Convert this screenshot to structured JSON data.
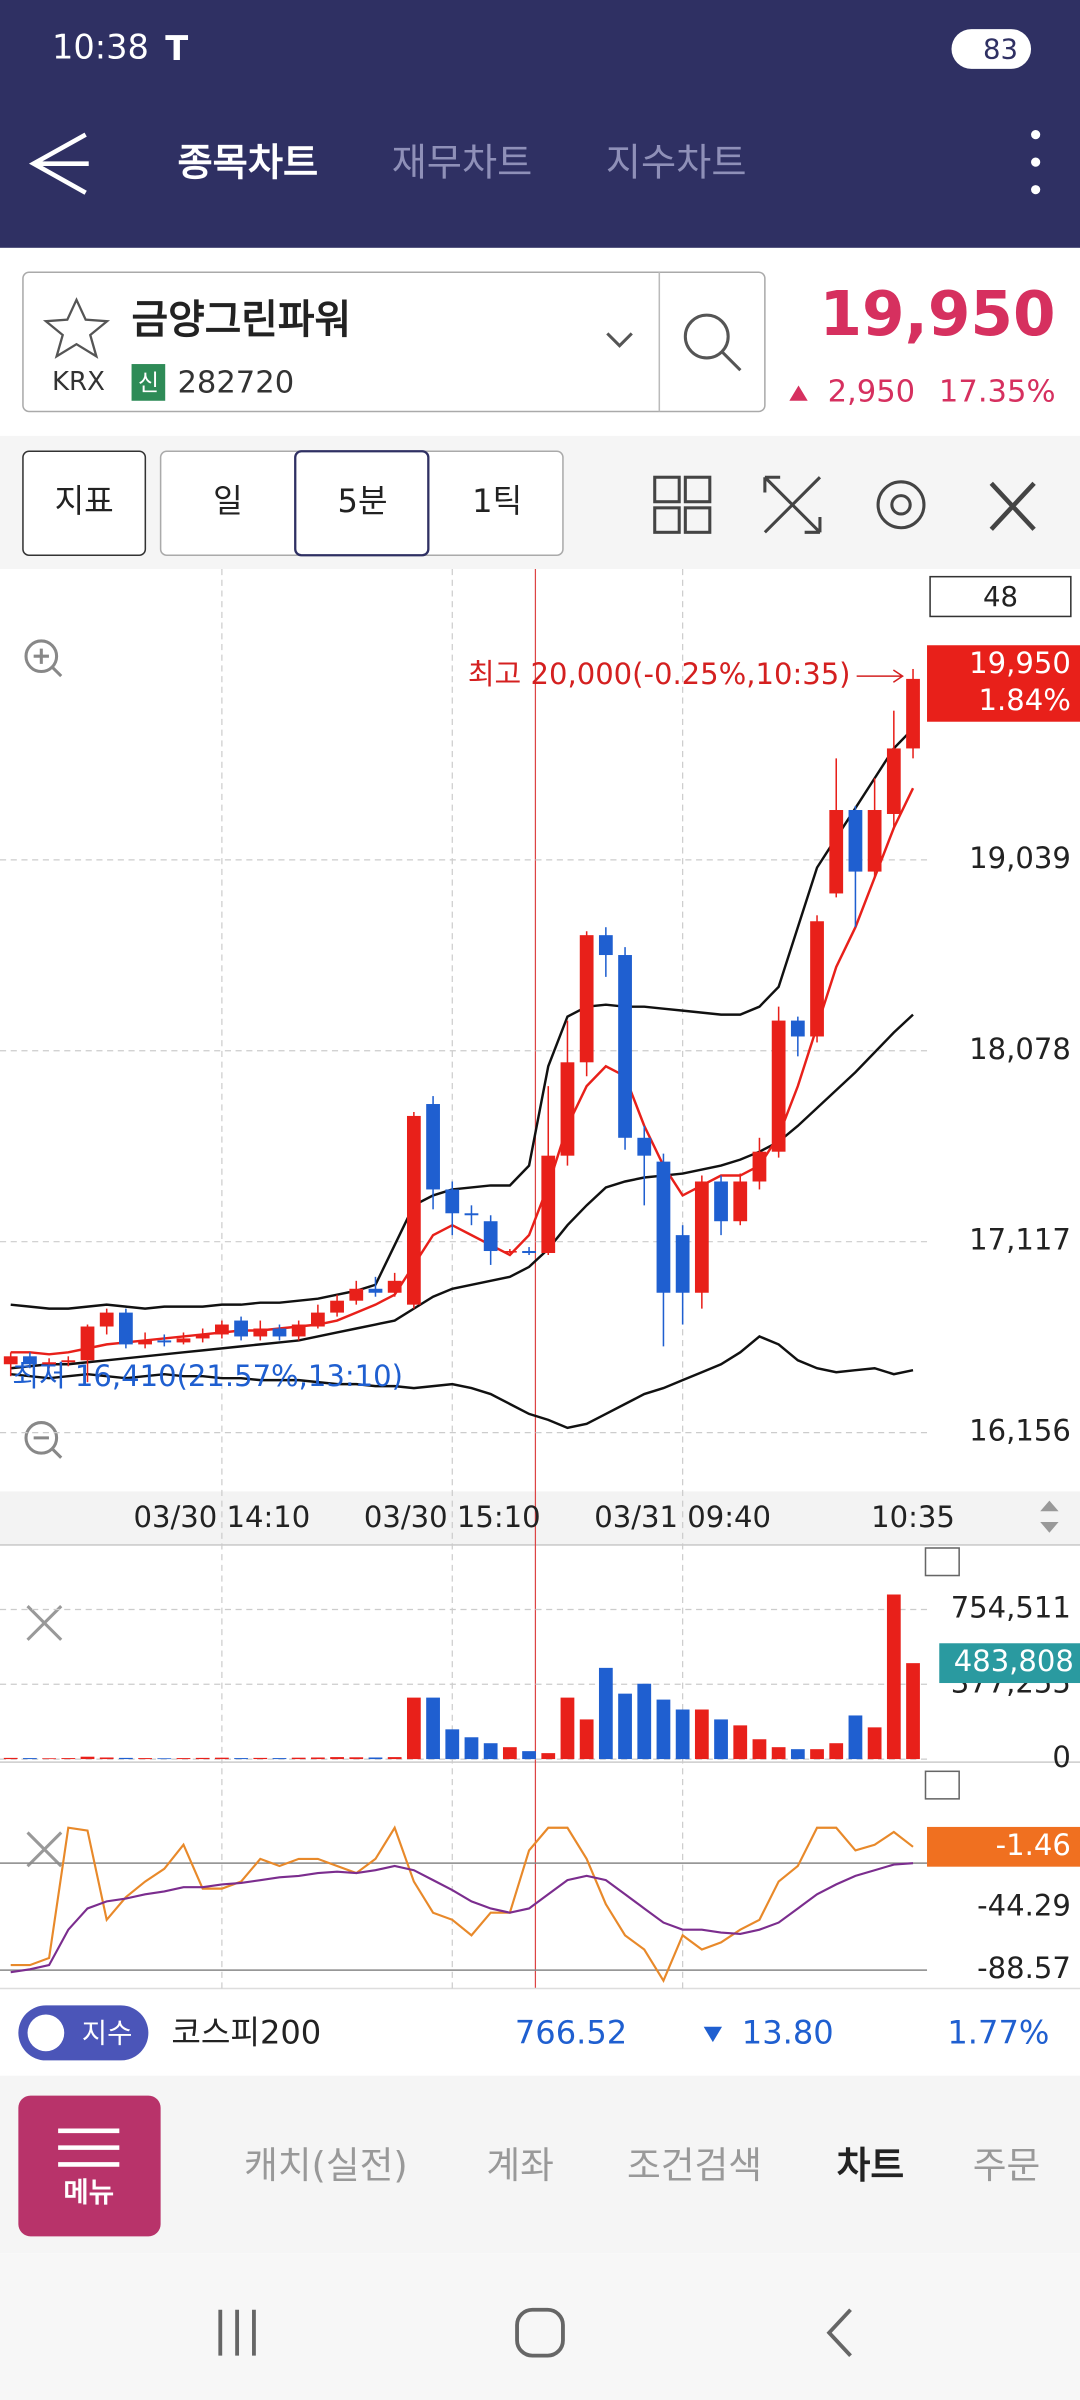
{
  "status_bar": {
    "time": "10:38",
    "battery": "83"
  },
  "tabs": [
    "종목차트",
    "재무차트",
    "지수차트"
  ],
  "stock": {
    "name": "금양그린파워",
    "market": "KRX",
    "badge": "신",
    "code": "282720",
    "price": "19,950",
    "change": "2,950",
    "change_rate": "17.35%"
  },
  "toolbar": {
    "indicator": "지표",
    "periods": [
      "일",
      "5분",
      "1틱"
    ]
  },
  "chart_data": [
    {
      "type": "candlestick",
      "count": 48,
      "categories": [
        null,
        null,
        null,
        null,
        null,
        null,
        null,
        null,
        null,
        null,
        null,
        "03/30 14:10",
        null,
        null,
        null,
        null,
        null,
        null,
        null,
        null,
        null,
        null,
        null,
        "03/30 15:10",
        null,
        null,
        null,
        null,
        null,
        null,
        null,
        null,
        null,
        null,
        null,
        "03/31 09:40",
        null,
        null,
        null,
        null,
        null,
        null,
        null,
        null,
        null,
        null,
        null,
        "10:35"
      ],
      "candles": [
        {
          "o": 16500,
          "h": 16560,
          "l": 16440,
          "c": 16540
        },
        {
          "o": 16540,
          "h": 16560,
          "l": 16480,
          "c": 16500
        },
        {
          "o": 16500,
          "h": 16530,
          "l": 16480,
          "c": 16510
        },
        {
          "o": 16510,
          "h": 16540,
          "l": 16490,
          "c": 16520
        },
        {
          "o": 16520,
          "h": 16700,
          "l": 16410,
          "c": 16690
        },
        {
          "o": 16690,
          "h": 16780,
          "l": 16650,
          "c": 16760
        },
        {
          "o": 16760,
          "h": 16780,
          "l": 16580,
          "c": 16600
        },
        {
          "o": 16600,
          "h": 16660,
          "l": 16580,
          "c": 16620
        },
        {
          "o": 16620,
          "h": 16650,
          "l": 16590,
          "c": 16610
        },
        {
          "o": 16610,
          "h": 16660,
          "l": 16600,
          "c": 16630
        },
        {
          "o": 16630,
          "h": 16680,
          "l": 16610,
          "c": 16650
        },
        {
          "o": 16650,
          "h": 16720,
          "l": 16630,
          "c": 16700
        },
        {
          "o": 16720,
          "h": 16740,
          "l": 16620,
          "c": 16640
        },
        {
          "o": 16640,
          "h": 16720,
          "l": 16620,
          "c": 16680
        },
        {
          "o": 16680,
          "h": 16700,
          "l": 16620,
          "c": 16640
        },
        {
          "o": 16640,
          "h": 16720,
          "l": 16620,
          "c": 16700
        },
        {
          "o": 16690,
          "h": 16800,
          "l": 16680,
          "c": 16760
        },
        {
          "o": 16760,
          "h": 16850,
          "l": 16740,
          "c": 16820
        },
        {
          "o": 16820,
          "h": 16920,
          "l": 16800,
          "c": 16880
        },
        {
          "o": 16880,
          "h": 16940,
          "l": 16840,
          "c": 16860
        },
        {
          "o": 16860,
          "h": 16960,
          "l": 16840,
          "c": 16920
        },
        {
          "o": 16800,
          "h": 17770,
          "l": 16780,
          "c": 17750
        },
        {
          "o": 17810,
          "h": 17850,
          "l": 17280,
          "c": 17380
        },
        {
          "o": 17380,
          "h": 17420,
          "l": 17150,
          "c": 17260
        },
        {
          "o": 17260,
          "h": 17300,
          "l": 17200,
          "c": 17250
        },
        {
          "o": 17220,
          "h": 17250,
          "l": 17000,
          "c": 17070
        },
        {
          "o": 17070,
          "h": 17080,
          "l": 17060,
          "c": 17070
        },
        {
          "o": 17070,
          "h": 17090,
          "l": 17050,
          "c": 17060
        },
        {
          "o": 17060,
          "h": 17900,
          "l": 17050,
          "c": 17550
        },
        {
          "o": 17550,
          "h": 18230,
          "l": 17500,
          "c": 18020
        },
        {
          "o": 18020,
          "h": 18680,
          "l": 17950,
          "c": 18660
        },
        {
          "o": 18660,
          "h": 18700,
          "l": 18450,
          "c": 18560
        },
        {
          "o": 18560,
          "h": 18600,
          "l": 17580,
          "c": 17640
        },
        {
          "o": 17640,
          "h": 17700,
          "l": 17300,
          "c": 17550
        },
        {
          "o": 17520,
          "h": 17560,
          "l": 16590,
          "c": 16860
        },
        {
          "o": 17150,
          "h": 17200,
          "l": 16700,
          "c": 16860
        },
        {
          "o": 16860,
          "h": 17450,
          "l": 16780,
          "c": 17420
        },
        {
          "o": 17420,
          "h": 17450,
          "l": 17150,
          "c": 17220
        },
        {
          "o": 17220,
          "h": 17460,
          "l": 17200,
          "c": 17420
        },
        {
          "o": 17420,
          "h": 17640,
          "l": 17380,
          "c": 17570
        },
        {
          "o": 17570,
          "h": 18300,
          "l": 17540,
          "c": 18230
        },
        {
          "o": 18230,
          "h": 18250,
          "l": 18050,
          "c": 18150
        },
        {
          "o": 18150,
          "h": 18760,
          "l": 18120,
          "c": 18730
        },
        {
          "o": 18870,
          "h": 19550,
          "l": 18850,
          "c": 19290
        },
        {
          "o": 19290,
          "h": 19310,
          "l": 18700,
          "c": 18980
        },
        {
          "o": 18980,
          "h": 19450,
          "l": 18950,
          "c": 19290
        },
        {
          "o": 19270,
          "h": 19790,
          "l": 19200,
          "c": 19600
        },
        {
          "o": 19600,
          "h": 20000,
          "l": 19550,
          "c": 19950
        }
      ],
      "up_color": "#e8201a",
      "down_color": "#1f5fd0",
      "series": [
        {
          "color": "#111111",
          "values": [
            16800,
            16790,
            16780,
            16780,
            16790,
            16800,
            16790,
            16780,
            16790,
            16790,
            16790,
            16800,
            16800,
            16810,
            16810,
            16820,
            16830,
            16850,
            16870,
            16900,
            17100,
            17300,
            17350,
            17380,
            17390,
            17400,
            17400,
            17500,
            18000,
            18250,
            18300,
            18310,
            18300,
            18300,
            18290,
            18280,
            18270,
            18260,
            18260,
            18300,
            18400,
            18700,
            19000,
            19150,
            19300,
            19450,
            19600,
            19700
          ]
        },
        {
          "color": "#111111",
          "values": [
            16450,
            16440,
            16430,
            16440,
            16450,
            16440,
            16430,
            16440,
            16450,
            16440,
            16440,
            16430,
            16430,
            16420,
            16420,
            16420,
            16410,
            16400,
            16400,
            16390,
            16390,
            16380,
            16390,
            16400,
            16380,
            16350,
            16300,
            16250,
            16220,
            16180,
            16200,
            16250,
            16300,
            16350,
            16380,
            16420,
            16460,
            16500,
            16560,
            16640,
            16600,
            16520,
            16480,
            16460,
            16470,
            16480,
            16450,
            16470
          ]
        },
        {
          "color": "#111111",
          "values": [
            16480,
            16490,
            16500,
            16500,
            16510,
            16520,
            16530,
            16540,
            16550,
            16560,
            16570,
            16580,
            16590,
            16600,
            16610,
            16620,
            16640,
            16660,
            16680,
            16700,
            16720,
            16780,
            16840,
            16880,
            16900,
            16920,
            16940,
            16990,
            17080,
            17200,
            17300,
            17390,
            17420,
            17440,
            17450,
            17460,
            17480,
            17500,
            17530,
            17570,
            17620,
            17700,
            17790,
            17880,
            17970,
            18070,
            18170,
            18260
          ]
        },
        {
          "color": "#e8201a",
          "values": [
            16560,
            16560,
            16550,
            16560,
            16580,
            16600,
            16610,
            16620,
            16630,
            16640,
            16650,
            16660,
            16670,
            16670,
            16680,
            16690,
            16700,
            16720,
            16760,
            16800,
            16850,
            17000,
            17150,
            17200,
            17150,
            17100,
            17050,
            17150,
            17400,
            17700,
            17900,
            18000,
            17950,
            17700,
            17500,
            17350,
            17400,
            17450,
            17450,
            17500,
            17650,
            17900,
            18200,
            18500,
            18700,
            18950,
            19200,
            19400
          ]
        }
      ],
      "ylim": [
        15860,
        20480
      ],
      "yticks": [
        {
          "value": 16156,
          "label": "16,156"
        },
        {
          "value": 17117,
          "label": "17,117"
        },
        {
          "value": 18078,
          "label": "18,078"
        },
        {
          "value": 19039,
          "label": "19,039"
        }
      ],
      "last_label": "19,950",
      "last_change": "1.84%",
      "annotations": [
        "최고 20,000(-0.25%,10:35)",
        "최저 16,410(21.57%,13:10)"
      ],
      "grid": true
    },
    {
      "type": "bar",
      "values": [
        6000,
        5000,
        4000,
        5000,
        12000,
        8000,
        6000,
        5000,
        4000,
        5000,
        6000,
        7000,
        5000,
        6000,
        5000,
        7000,
        8000,
        10000,
        9000,
        8000,
        10000,
        310000,
        310000,
        150000,
        110000,
        80000,
        60000,
        40000,
        30000,
        310000,
        200000,
        460000,
        330000,
        380000,
        300000,
        250000,
        250000,
        200000,
        170000,
        100000,
        60000,
        50000,
        50000,
        80000,
        220000,
        160000,
        830000,
        483808
      ],
      "value_labels": [
        null,
        null,
        null,
        null,
        null,
        null,
        null,
        null,
        null,
        null,
        null,
        null,
        null,
        null,
        null,
        null,
        null,
        null,
        null,
        null,
        null,
        null,
        null,
        null,
        null,
        null,
        null,
        null,
        null,
        null,
        null,
        null,
        null,
        null,
        null,
        null,
        null,
        null,
        null,
        null,
        null,
        null,
        null,
        null,
        null,
        null,
        null,
        "483,808"
      ],
      "ylim": [
        0,
        1080000
      ],
      "yticks": [
        0,
        {
          "value": 377255,
          "label": "377,255"
        },
        {
          "value": 754511,
          "label": "754,511"
        }
      ]
    },
    {
      "type": "line",
      "series": [
        {
          "color": "#e8892a",
          "values": [
            -85,
            -85,
            -80,
            12,
            10,
            -53,
            -37,
            -26,
            -17,
            0,
            -31,
            -31,
            -26,
            -10,
            -15,
            -10,
            -10,
            -15,
            -20,
            -10,
            12,
            -26,
            -48,
            -53,
            -64,
            -48,
            -48,
            -4,
            12,
            12,
            -10,
            -42,
            -64,
            -74,
            -96,
            -64,
            -74,
            -69,
            -60,
            -53,
            -26,
            -15,
            12,
            12,
            -4,
            0,
            9,
            -1.46
          ]
        },
        {
          "color": "#7b2d8e",
          "values": [
            -90,
            -88,
            -85,
            -60,
            -45,
            -40,
            -38,
            -35,
            -33,
            -30,
            -30,
            -28,
            -27,
            -25,
            -23,
            -22,
            -20,
            -19,
            -20,
            -18,
            -15,
            -18,
            -25,
            -32,
            -40,
            -45,
            -48,
            -45,
            -35,
            -25,
            -22,
            -25,
            -35,
            -45,
            -55,
            -60,
            -60,
            -62,
            -63,
            -60,
            -55,
            -45,
            -35,
            -28,
            -22,
            -18,
            -14,
            -13
          ]
        }
      ],
      "ylim": [
        -99.4,
        49.7
      ],
      "yticks": [
        -44.29,
        -88.57
      ],
      "levels": [
        -13,
        -88.57
      ]
    }
  ],
  "ticker": {
    "badge": "지수",
    "name": "코스피200",
    "value": "766.52",
    "change": "13.80",
    "rate": "1.77%"
  },
  "nav": {
    "menu": "메뉴",
    "items": [
      "캐치(실전)",
      "계좌",
      "조건검색",
      "차트",
      "주문"
    ]
  }
}
